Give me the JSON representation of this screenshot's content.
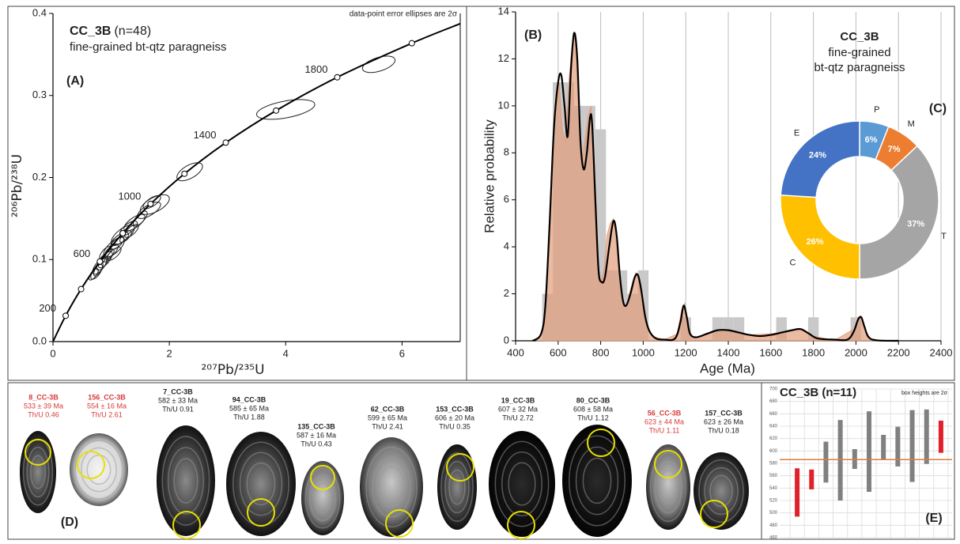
{
  "chart_data": [
    {
      "type": "concordia",
      "panel": "(A)",
      "title": "CC_3B",
      "subtitle": "(n=48)",
      "description": "fine-grained bt-qtz paragneiss",
      "note": "data-point error ellipses are 2σ",
      "xlabel": "²⁰⁷Pb/²³⁵U",
      "ylabel": "²⁰⁶Pb/²³⁸U",
      "xlim": [
        0,
        7
      ],
      "ylim": [
        0,
        0.4
      ],
      "xticks": [
        0,
        2,
        4,
        6
      ],
      "yticks": [
        {
          "value": 0,
          "label": "0.0"
        },
        0.1,
        0.2,
        0.3,
        0.4
      ],
      "curve": {
        "x": [
          0,
          0.218,
          0.483,
          0.806,
          1.199,
          1.677,
          2.26,
          2.97,
          3.835,
          4.886,
          6.168,
          7.0
        ],
        "y": [
          0,
          0.0315,
          0.064,
          0.0976,
          0.1321,
          0.1678,
          0.2046,
          0.2425,
          0.2816,
          0.3222,
          0.3637,
          0.3875
        ],
        "marker": [
          false,
          true,
          true,
          true,
          true,
          true,
          true,
          true,
          true,
          true,
          true,
          false
        ],
        "labels": [
          null,
          200,
          null,
          600,
          null,
          1000,
          null,
          1400,
          null,
          1800,
          null,
          null
        ]
      },
      "ellipses": {
        "x": [
          4.0,
          5.6,
          2.35,
          1.75,
          1.65,
          1.7,
          1.4,
          1.3,
          1.2,
          1.15,
          1.1,
          1.05,
          1.0,
          0.95,
          0.9,
          0.85,
          0.8,
          0.78,
          0.75,
          0.7,
          1.35,
          1.25,
          0.9,
          1.05,
          1.5,
          0.85
        ],
        "y": [
          0.283,
          0.338,
          0.207,
          0.167,
          0.16,
          0.17,
          0.145,
          0.138,
          0.13,
          0.125,
          0.12,
          0.115,
          0.11,
          0.105,
          0.1,
          0.095,
          0.092,
          0.088,
          0.085,
          0.082,
          0.135,
          0.128,
          0.108,
          0.107,
          0.15,
          0.1
        ],
        "x_err": [
          0.5,
          0.28,
          0.22,
          0.25,
          0.2,
          0.15,
          0.18,
          0.15,
          0.2,
          0.15,
          0.12,
          0.18,
          0.12,
          0.1,
          0.12,
          0.1,
          0.12,
          0.08,
          0.1,
          0.08,
          0.12,
          0.1,
          0.1,
          0.12,
          0.12,
          0.06
        ],
        "y_err": [
          0.012,
          0.01,
          0.011,
          0.012,
          0.01,
          0.008,
          0.01,
          0.009,
          0.012,
          0.008,
          0.008,
          0.012,
          0.009,
          0.008,
          0.01,
          0.008,
          0.01,
          0.008,
          0.009,
          0.007,
          0.008,
          0.007,
          0.008,
          0.008,
          0.009,
          0.006
        ],
        "rho": [
          0.5,
          0.5,
          0.6,
          0.6,
          0.7,
          0.7,
          0.7,
          0.7,
          0.7,
          0.7,
          0.7,
          0.7,
          0.7,
          0.7,
          0.7,
          0.7,
          0.7,
          0.7,
          0.7,
          0.7,
          0.7,
          0.7,
          0.7,
          0.7,
          0.7,
          0.7
        ]
      }
    },
    {
      "type": "histogram",
      "panel": "(B)",
      "title": "CC_3B",
      "subtitle": "fine-grained",
      "description": "bt-qtz paragneiss",
      "xlabel": "Age (Ma)",
      "ylabel": "Relative probability",
      "xlim": [
        400,
        2400
      ],
      "ylim": [
        0,
        14
      ],
      "xticks": [
        400,
        600,
        800,
        1000,
        1200,
        1400,
        1600,
        1800,
        2000,
        2200,
        2400
      ],
      "yticks": [
        0,
        2,
        4,
        6,
        8,
        10,
        12,
        14
      ],
      "grid": "x",
      "bins": [
        525,
        575,
        625,
        675,
        725,
        775,
        825,
        875,
        925,
        975,
        1025,
        1075,
        1125,
        1175,
        1225,
        1275,
        1325,
        1375,
        1425,
        1475,
        1525,
        1575,
        1625,
        1675,
        1725,
        1775,
        1825,
        1875,
        1925,
        1975,
        2025,
        2075
      ],
      "counts": [
        2,
        11,
        11,
        10,
        10,
        9,
        3,
        3,
        2,
        3,
        0,
        0,
        0,
        1,
        0,
        0,
        1,
        1,
        1,
        0,
        0,
        0,
        1,
        0,
        0,
        1,
        0,
        0,
        0,
        1,
        0
      ],
      "bar_color": "#c9c9c9",
      "series": [
        {
          "type": "area",
          "color": "#e39c7b",
          "x": [
            500,
            530,
            545,
            560,
            575,
            590,
            605,
            620,
            635,
            650,
            665,
            680,
            695,
            710,
            725,
            740,
            755,
            770,
            785,
            800,
            815,
            830,
            845,
            860,
            875,
            890,
            905,
            920,
            935,
            950,
            965,
            980,
            995,
            1010,
            1040,
            1100,
            1160,
            1180,
            1195,
            1210,
            1240,
            1300,
            1400,
            1500,
            1600,
            1700,
            1750,
            1800,
            1900,
            1990,
            2010,
            2025,
            2040,
            2070,
            2200
          ],
          "values": [
            0,
            0.5,
            2.5,
            4,
            8,
            10.5,
            11,
            9,
            8.5,
            11,
            12.5,
            13,
            10,
            7.5,
            8.5,
            9.5,
            10,
            6,
            3,
            2.5,
            3,
            4.5,
            5,
            5.2,
            4,
            2.5,
            1.5,
            1.4,
            2,
            2.5,
            2.9,
            2.6,
            1.8,
            0.8,
            0.2,
            0.05,
            0.3,
            1.3,
            1.6,
            0.5,
            0.1,
            0.3,
            0.45,
            0.25,
            0.3,
            0.45,
            0.5,
            0.2,
            0.02,
            0.5,
            1,
            1.05,
            0.5,
            0.05,
            0
          ]
        },
        {
          "type": "line",
          "color": "#000000",
          "x": [
            480,
            520,
            540,
            560,
            580,
            600,
            615,
            630,
            645,
            660,
            675,
            690,
            705,
            720,
            735,
            750,
            760,
            775,
            790,
            805,
            820,
            840,
            860,
            875,
            890,
            905,
            920,
            940,
            960,
            975,
            990,
            1010,
            1030,
            1060,
            1100,
            1150,
            1175,
            1190,
            1205,
            1220,
            1250,
            1300,
            1350,
            1400,
            1450,
            1500,
            1550,
            1600,
            1650,
            1700,
            1740,
            1780,
            1820,
            1900,
            1960,
            1990,
            2010,
            2025,
            2040,
            2060,
            2100,
            2200
          ],
          "values": [
            0,
            0.3,
            1.5,
            5,
            9,
            11,
            11.3,
            10,
            8.7,
            11.5,
            13.1,
            12,
            8.5,
            7.3,
            8,
            9.5,
            9.2,
            6,
            3,
            2.5,
            2.7,
            4,
            5.1,
            4.5,
            2.8,
            1.7,
            1.5,
            2,
            2.7,
            2.8,
            2.2,
            1,
            0.4,
            0.1,
            0.05,
            0.1,
            0.8,
            1.5,
            1,
            0.3,
            0.15,
            0.3,
            0.45,
            0.45,
            0.35,
            0.25,
            0.2,
            0.25,
            0.35,
            0.45,
            0.5,
            0.3,
            0.1,
            0.05,
            0.05,
            0.4,
            0.9,
            1,
            0.6,
            0.15,
            0.02,
            0
          ]
        }
      ]
    },
    {
      "type": "pie",
      "panel": "(C)",
      "donut": true,
      "categories": [
        "P",
        "M",
        "T",
        "C",
        "E"
      ],
      "values": [
        6,
        7,
        37,
        26,
        24
      ],
      "value_labels": [
        "6%",
        "7%",
        "37%",
        "26%",
        "24%"
      ],
      "colors": [
        "#5b9bd5",
        "#ed7d31",
        "#a5a5a5",
        "#ffc000",
        "#4472c4"
      ]
    },
    {
      "type": "range",
      "panel": "(E)",
      "title": "CC_3B (n=11)",
      "note": "box heights are 2σ",
      "ylim": [
        460,
        700
      ],
      "yticks": [
        460,
        480,
        500,
        520,
        540,
        560,
        580,
        600,
        620,
        640,
        660,
        680,
        700
      ],
      "grid": true,
      "values": [
        533,
        554,
        582,
        585,
        587,
        599,
        606,
        607,
        608,
        623,
        623
      ],
      "errors": [
        39,
        16,
        33,
        65,
        16,
        65,
        20,
        32,
        58,
        44,
        26
      ],
      "colors": [
        "#e0202a",
        "#e0202a",
        "#808080",
        "#808080",
        "#808080",
        "#808080",
        "#808080",
        "#808080",
        "#808080",
        "#808080",
        "#e0202a"
      ],
      "hline": 586,
      "hline_color": "#e07b39"
    }
  ],
  "grains_panel": {
    "label": "(D)",
    "highlight_color": "#d93a3a",
    "text_color": "#222222",
    "grains": [
      {
        "id": "8_CC-3B",
        "age": "533 ± 39 Ma",
        "thu": "Th/U 0.46",
        "highlight": true
      },
      {
        "id": "156_CC-3B",
        "age": "554 ± 16 Ma",
        "thu": "Th/U 2.61",
        "highlight": true
      },
      {
        "id": "7_CC-3B",
        "age": "582 ± 33 Ma",
        "thu": "Th/U 0.91",
        "highlight": false
      },
      {
        "id": "94_CC-3B",
        "age": "585 ± 65 Ma",
        "thu": "Th/U 1.88",
        "highlight": false
      },
      {
        "id": "135_CC-3B",
        "age": "587 ± 16 Ma",
        "thu": "Th/U 0.43",
        "highlight": false
      },
      {
        "id": "62_CC-3B",
        "age": "599 ± 65 Ma",
        "thu": "Th/U 2.41",
        "highlight": false
      },
      {
        "id": "153_CC-3B",
        "age": "606 ± 20 Ma",
        "thu": "Th/U 0.35",
        "highlight": false
      },
      {
        "id": "19_CC-3B",
        "age": "607 ± 32 Ma",
        "thu": "Th/U 2.72",
        "highlight": false
      },
      {
        "id": "80_CC-3B",
        "age": "608 ± 58 Ma",
        "thu": "Th/U 1.12",
        "highlight": false
      },
      {
        "id": "56_CC-3B",
        "age": "623 ± 44 Ma",
        "thu": "Th/U 1.11",
        "highlight": true
      },
      {
        "id": "157_CC-3B",
        "age": "623 ± 26 Ma",
        "thu": "Th/U 0.18",
        "highlight": false
      }
    ]
  }
}
